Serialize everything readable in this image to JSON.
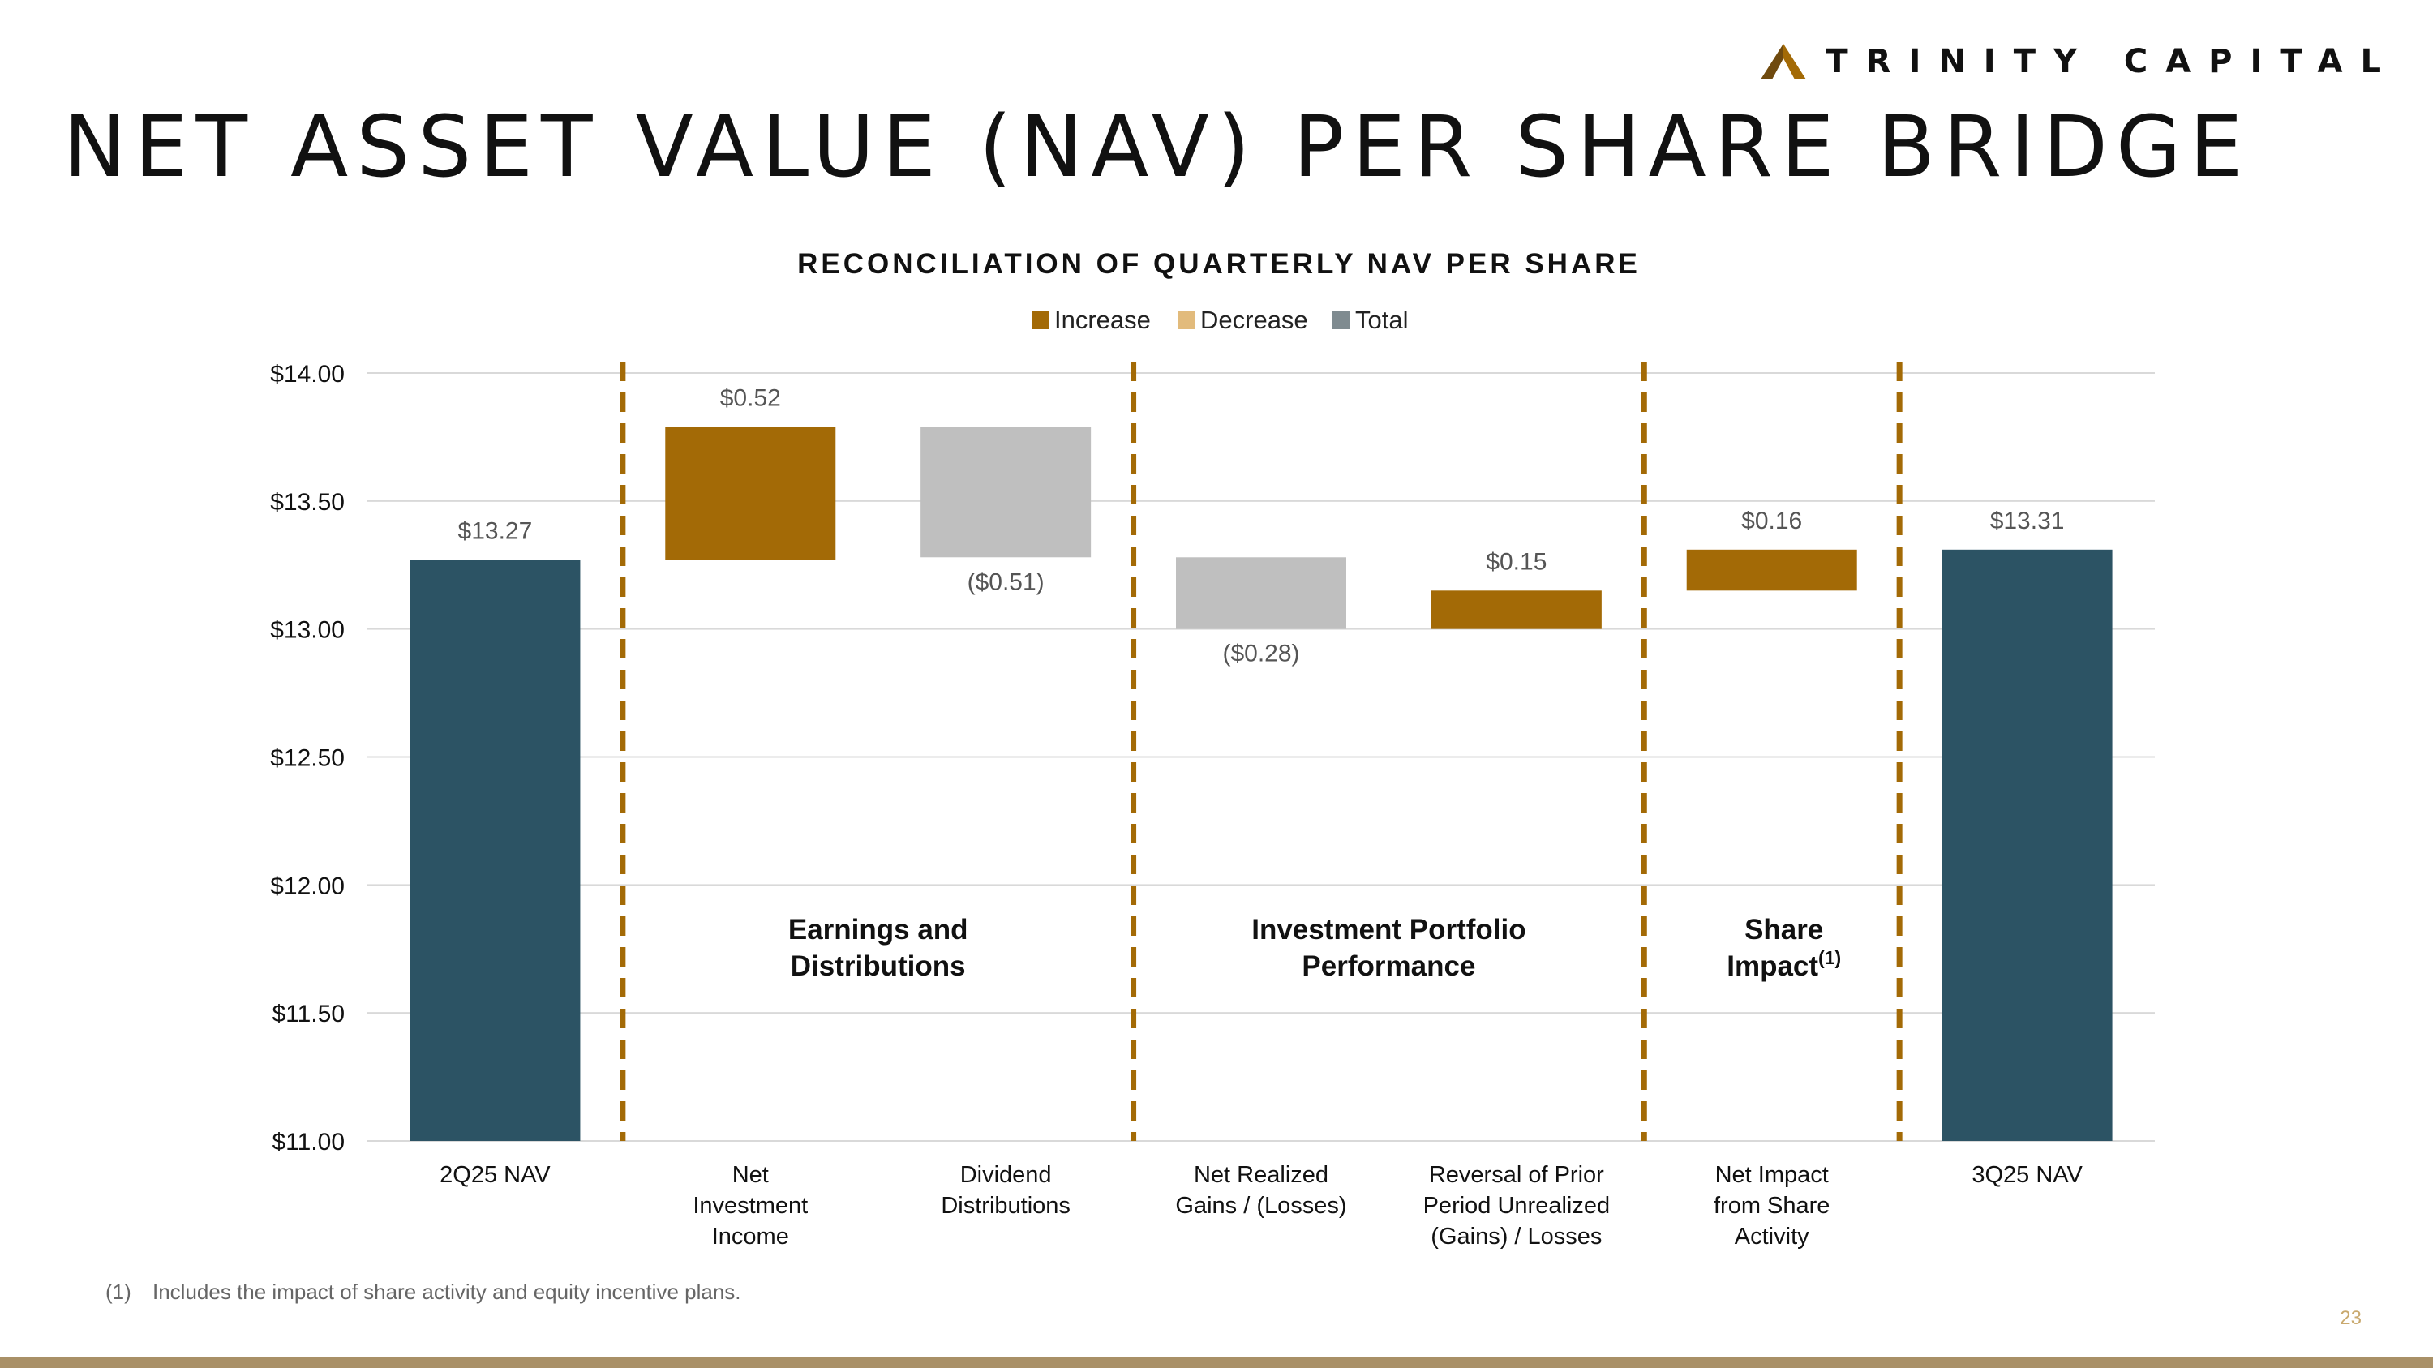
{
  "header": {
    "brand": "TRINITY CAPITAL",
    "title": "NET ASSET VALUE (NAV) PER SHARE BRIDGE"
  },
  "colors": {
    "increase": "#a36a06",
    "decrease": "#bfbfbf",
    "decrease_legend": "#e2bb7c",
    "total": "#2c5364",
    "total_legend": "#7f8b90",
    "divider": "#a36a06",
    "grid": "#d9d9d9",
    "logo_accent": "#a36a06"
  },
  "chart_data": {
    "type": "waterfall",
    "title": "RECONCILIATION OF QUARTERLY NAV PER SHARE",
    "legend": [
      "Increase",
      "Decrease",
      "Total"
    ],
    "legend_position": "top-center",
    "ylim": [
      11.0,
      14.0
    ],
    "yticks": [
      14.0,
      13.5,
      13.0,
      12.5,
      12.0,
      11.5,
      11.0
    ],
    "ytick_labels": [
      "$14.00",
      "$13.50",
      "$13.00",
      "$12.50",
      "$12.00",
      "$11.50",
      "$11.00"
    ],
    "grid": true,
    "categories": [
      [
        "2Q25 NAV"
      ],
      [
        "Net",
        "Investment",
        "Income"
      ],
      [
        "Dividend",
        "Distributions"
      ],
      [
        "Net Realized",
        "Gains / (Losses)"
      ],
      [
        "Reversal of Prior",
        "Period Unrealized",
        "(Gains) / Losses"
      ],
      [
        "Net Impact",
        "from Share",
        "Activity"
      ],
      [
        "3Q25 NAV"
      ]
    ],
    "bars": [
      {
        "kind": "total",
        "start": 11.0,
        "end": 13.27,
        "label": "$13.27"
      },
      {
        "kind": "increase",
        "start": 13.27,
        "end": 13.79,
        "label": "$0.52"
      },
      {
        "kind": "decrease",
        "start": 13.79,
        "end": 13.28,
        "label": "($0.51)"
      },
      {
        "kind": "decrease",
        "start": 13.28,
        "end": 13.0,
        "label": "($0.28)"
      },
      {
        "kind": "increase",
        "start": 13.0,
        "end": 13.15,
        "label": "$0.15"
      },
      {
        "kind": "increase",
        "start": 13.15,
        "end": 13.31,
        "label": "$0.16"
      },
      {
        "kind": "total",
        "start": 11.0,
        "end": 13.31,
        "label": "$13.31"
      }
    ],
    "dividers_after": [
      0,
      2,
      4,
      5
    ],
    "group_labels": [
      {
        "lines": [
          "Earnings and",
          "Distributions"
        ],
        "superscript": "",
        "span": [
          1,
          2
        ]
      },
      {
        "lines": [
          "Investment Portfolio",
          "Performance"
        ],
        "superscript": "",
        "span": [
          3,
          4
        ]
      },
      {
        "lines": [
          "Share",
          "Impact"
        ],
        "superscript": "(1)",
        "span": [
          5,
          5
        ]
      }
    ]
  },
  "footnote": {
    "marker": "(1)",
    "text": "Includes the impact of share activity and equity incentive plans."
  },
  "page_number": "23"
}
